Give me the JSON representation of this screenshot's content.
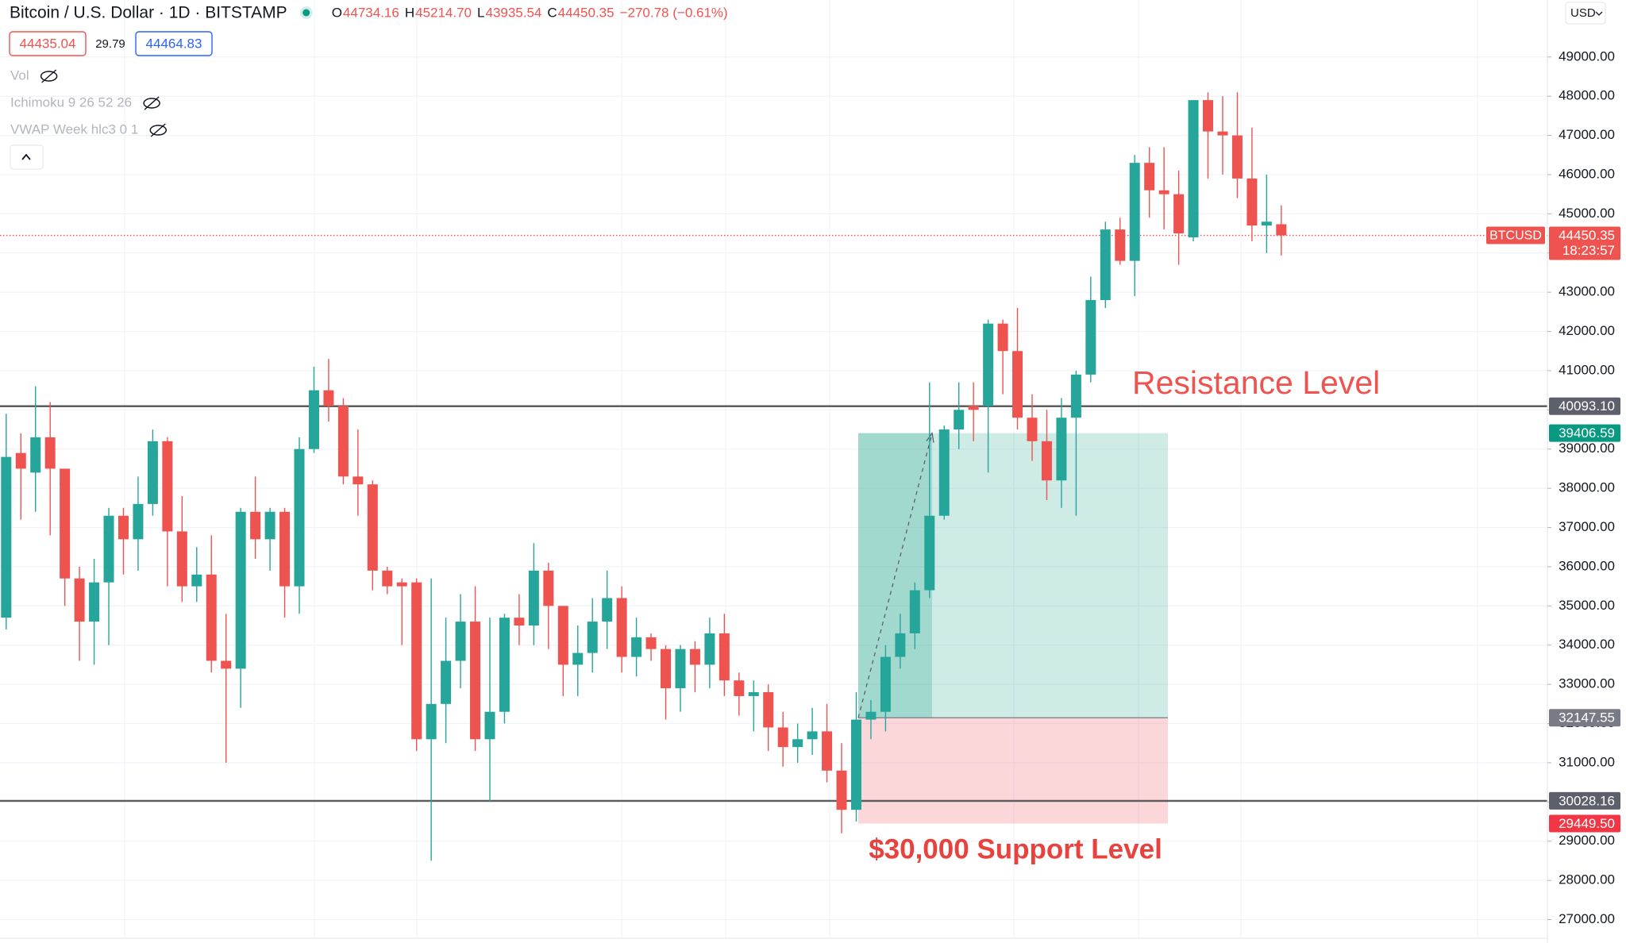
{
  "toolbar": {
    "title": "Bitcoin / U.S. Dollar · 1D · BITSTAMP",
    "legend": [
      {
        "label": "O",
        "value": "44734.16"
      },
      {
        "label": "H",
        "value": "45214.70"
      },
      {
        "label": "L",
        "value": "43935.54"
      },
      {
        "label": "C",
        "value": "44450.35"
      }
    ],
    "change": "−270.78 (−0.61%)",
    "bid": "44435.04",
    "spread": "29.79",
    "ask": "44464.83",
    "indicators": [
      "Vol",
      "Ichimoku 9 26 52 26",
      "VWAP Week hlc3 0 1"
    ],
    "currency": "USD"
  },
  "chart_data": {
    "type": "candlestick",
    "up_color": "#26a69a",
    "down_color": "#ef5350",
    "grid": true,
    "ylim": [
      26403,
      50453
    ],
    "yticks": [
      {
        "value": 27000,
        "label": "27000.00"
      },
      {
        "value": 28000,
        "label": "28000.00"
      },
      {
        "value": 29000,
        "label": "29000.00"
      },
      {
        "value": 30000,
        "label": "30000.00"
      },
      {
        "value": 31000,
        "label": "31000.00"
      },
      {
        "value": 32000,
        "label": "32000.00"
      },
      {
        "value": 33000,
        "label": "33000.00"
      },
      {
        "value": 34000,
        "label": "34000.00"
      },
      {
        "value": 35000,
        "label": "35000.00"
      },
      {
        "value": 36000,
        "label": "36000.00"
      },
      {
        "value": 37000,
        "label": "37000.00"
      },
      {
        "value": 38000,
        "label": "38000.00"
      },
      {
        "value": 39000,
        "label": "39000.00"
      },
      {
        "value": 40000,
        "label": "40000.00"
      },
      {
        "value": 41000,
        "label": "41000.00"
      },
      {
        "value": 42000,
        "label": "42000.00"
      },
      {
        "value": 43000,
        "label": "43000.00"
      },
      {
        "value": 44000,
        "label": "44000.00"
      },
      {
        "value": 45000,
        "label": "45000.00"
      },
      {
        "value": 46000,
        "label": "46000.00"
      },
      {
        "value": 47000,
        "label": "47000.00"
      },
      {
        "value": 48000,
        "label": "48000.00"
      },
      {
        "value": 49000,
        "label": "49000.00"
      }
    ],
    "ohlc": [
      [
        34700,
        39900,
        34400,
        38800
      ],
      [
        38900,
        39400,
        37200,
        38500
      ],
      [
        38400,
        40600,
        37400,
        39300
      ],
      [
        39300,
        40200,
        36800,
        38500
      ],
      [
        38500,
        38500,
        35000,
        35700
      ],
      [
        35700,
        36000,
        33600,
        34600
      ],
      [
        34600,
        36200,
        33500,
        35600
      ],
      [
        35600,
        37500,
        34000,
        37300
      ],
      [
        37300,
        37500,
        35800,
        36700
      ],
      [
        36700,
        38300,
        35900,
        37600
      ],
      [
        37600,
        39500,
        37300,
        39200
      ],
      [
        39200,
        39300,
        35500,
        36900
      ],
      [
        36900,
        37800,
        35100,
        35500
      ],
      [
        35500,
        36500,
        35100,
        35800
      ],
      [
        35800,
        36800,
        33300,
        33600
      ],
      [
        33600,
        34800,
        31000,
        33400
      ],
      [
        33400,
        37500,
        32400,
        37400
      ],
      [
        37400,
        38300,
        36200,
        36700
      ],
      [
        36700,
        37500,
        35900,
        37400
      ],
      [
        37400,
        37500,
        34700,
        35500
      ],
      [
        35500,
        39300,
        34800,
        39000
      ],
      [
        39000,
        41100,
        38900,
        40500
      ],
      [
        40500,
        41300,
        39700,
        40100
      ],
      [
        40100,
        40300,
        38100,
        38300
      ],
      [
        38300,
        39500,
        37300,
        38100
      ],
      [
        38100,
        38200,
        35400,
        35900
      ],
      [
        35900,
        36000,
        35300,
        35500
      ],
      [
        35600,
        35700,
        34000,
        35500
      ],
      [
        35600,
        35700,
        31300,
        31600
      ],
      [
        31600,
        35700,
        28500,
        32500
      ],
      [
        32500,
        34700,
        31500,
        33600
      ],
      [
        33600,
        35300,
        32900,
        34600
      ],
      [
        34600,
        35500,
        31300,
        31600
      ],
      [
        31600,
        34700,
        30000,
        32300
      ],
      [
        32300,
        34800,
        32000,
        34700
      ],
      [
        34700,
        35300,
        34000,
        34500
      ],
      [
        34500,
        36600,
        34000,
        35900
      ],
      [
        35900,
        36100,
        33900,
        35000
      ],
      [
        35000,
        35000,
        32700,
        33500
      ],
      [
        33500,
        34500,
        32700,
        33800
      ],
      [
        33800,
        35200,
        33300,
        34600
      ],
      [
        34600,
        35900,
        33900,
        35200
      ],
      [
        35200,
        35500,
        33300,
        33700
      ],
      [
        33700,
        34700,
        33200,
        34200
      ],
      [
        34200,
        34300,
        33600,
        33900
      ],
      [
        33900,
        34000,
        32100,
        32900
      ],
      [
        32900,
        34000,
        32300,
        33900
      ],
      [
        33900,
        34100,
        32800,
        33500
      ],
      [
        33500,
        34700,
        32900,
        34300
      ],
      [
        34300,
        34800,
        32700,
        33100
      ],
      [
        33100,
        33300,
        32200,
        32700
      ],
      [
        32700,
        33100,
        31800,
        32800
      ],
      [
        32800,
        33000,
        31300,
        31900
      ],
      [
        31900,
        32300,
        30900,
        31400
      ],
      [
        31400,
        32000,
        31000,
        31600
      ],
      [
        31600,
        32400,
        31200,
        31800
      ],
      [
        31800,
        32500,
        30500,
        30800
      ],
      [
        30800,
        31500,
        29200,
        29800
      ],
      [
        29800,
        32800,
        29500,
        32100
      ],
      [
        32100,
        32600,
        31600,
        32300
      ],
      [
        32300,
        34000,
        31800,
        33700
      ],
      [
        33700,
        34800,
        33400,
        34300
      ],
      [
        34300,
        35600,
        33900,
        35400
      ],
      [
        35400,
        40700,
        35200,
        37300
      ],
      [
        37300,
        39600,
        37200,
        39500
      ],
      [
        39500,
        40700,
        39000,
        40000
      ],
      [
        40100,
        40700,
        39200,
        40000
      ],
      [
        40100,
        42300,
        38400,
        42200
      ],
      [
        42200,
        42300,
        40400,
        41500
      ],
      [
        41500,
        42600,
        39500,
        39800
      ],
      [
        39800,
        40400,
        38700,
        39200
      ],
      [
        39200,
        40000,
        37700,
        38200
      ],
      [
        38200,
        40300,
        37500,
        39800
      ],
      [
        39800,
        41000,
        37300,
        40900
      ],
      [
        40900,
        43400,
        40700,
        42800
      ],
      [
        42800,
        44800,
        42600,
        44600
      ],
      [
        44600,
        44900,
        43700,
        43800
      ],
      [
        43800,
        46500,
        42900,
        46300
      ],
      [
        46300,
        46700,
        44900,
        45600
      ],
      [
        45600,
        46700,
        44600,
        45500
      ],
      [
        45500,
        46100,
        43700,
        44500
      ],
      [
        44400,
        47900,
        44300,
        47900
      ],
      [
        47900,
        48100,
        45900,
        47100
      ],
      [
        47100,
        48000,
        46000,
        47000
      ],
      [
        47000,
        48100,
        45400,
        45900
      ],
      [
        45900,
        47200,
        44300,
        44700
      ],
      [
        44700,
        46000,
        44000,
        44800
      ],
      [
        44734.16,
        45214.7,
        43935.54,
        44450.35
      ]
    ],
    "levels": [
      {
        "value": 40093.1,
        "label": "40093.10"
      },
      {
        "value": 30028.16,
        "label": "30028.16"
      }
    ],
    "position": {
      "target": {
        "value": 39406.59,
        "label": "39406.59"
      },
      "entry": {
        "value": 32147.55,
        "label": "32147.55"
      },
      "stop": {
        "value": 29449.5,
        "label": "29449.50"
      }
    },
    "symbol": "BTCUSD",
    "countdown": "18:23:57",
    "annotations": [
      "Resistance Level",
      "$30,000 Support Level"
    ]
  }
}
